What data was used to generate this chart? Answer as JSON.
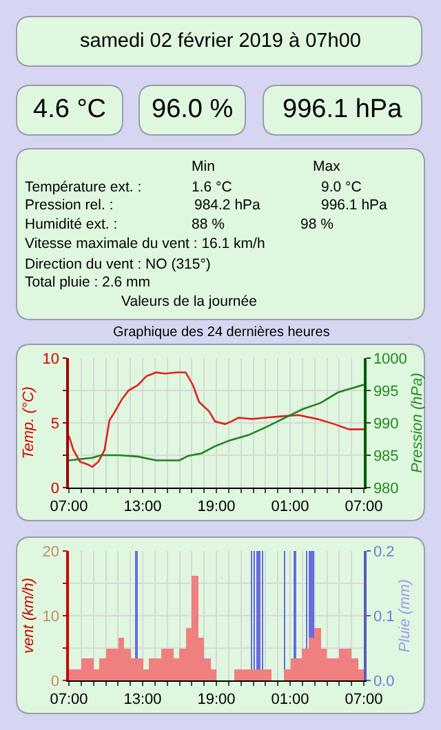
{
  "chart_data": [
    {
      "type": "other",
      "title": "samedi 02 février 2019 à 07h00",
      "annotations": [
        "4.6 °C",
        "96.0 %",
        "996.1 hPa",
        "Min",
        "Max",
        "Température ext. :",
        "1.6 °C",
        "9.0 °C",
        "Pression rel. :",
        "984.2 hPa",
        "996.1 hPa",
        "Humidité ext. :",
        "88 %",
        "98 %",
        "Vitesse maximale du vent : 16.1 km/h",
        "Direction du vent : NO (315°)",
        "Total pluie : 2.6 mm",
        "Valeurs de la journée"
      ]
    },
    {
      "type": "line",
      "title": "Graphique des 24 dernières heures",
      "ylabel": "Temp. (°C)",
      "y2label": "Pression (hPa)",
      "xlim": [
        "2019-02-01T07:00",
        "2019-02-02T07:00"
      ],
      "xticks": [
        {
          "value": "2019-02-01T07:00",
          "label": "07:00"
        },
        {
          "value": "2019-02-01T08:00",
          "label": null
        },
        {
          "value": "2019-02-01T09:00",
          "label": null
        },
        {
          "value": "2019-02-01T10:00",
          "label": null
        },
        {
          "value": "2019-02-01T11:00",
          "label": null
        },
        {
          "value": "2019-02-01T12:00",
          "label": null
        },
        {
          "value": "2019-02-01T13:00",
          "label": "13:00"
        },
        {
          "value": "2019-02-01T14:00",
          "label": null
        },
        {
          "value": "2019-02-01T15:00",
          "label": null
        },
        {
          "value": "2019-02-01T16:00",
          "label": null
        },
        {
          "value": "2019-02-01T17:00",
          "label": null
        },
        {
          "value": "2019-02-01T18:00",
          "label": null
        },
        {
          "value": "2019-02-01T19:00",
          "label": "19:00"
        },
        {
          "value": "2019-02-01T20:00",
          "label": null
        },
        {
          "value": "2019-02-01T21:00",
          "label": null
        },
        {
          "value": "2019-02-01T22:00",
          "label": null
        },
        {
          "value": "2019-02-01T23:00",
          "label": null
        },
        {
          "value": "2019-02-02T00:00",
          "label": null
        },
        {
          "value": "2019-02-02T01:00",
          "label": "01:00"
        },
        {
          "value": "2019-02-02T02:00",
          "label": null
        },
        {
          "value": "2019-02-02T03:00",
          "label": null
        },
        {
          "value": "2019-02-02T04:00",
          "label": null
        },
        {
          "value": "2019-02-02T05:00",
          "label": null
        },
        {
          "value": "2019-02-02T06:00",
          "label": null
        },
        {
          "value": "2019-02-02T07:00",
          "label": "07:00"
        }
      ],
      "ylim": [
        0,
        10
      ],
      "yticks": [
        0,
        {
          "value": 2.5,
          "label": null
        },
        5,
        {
          "value": 7.5,
          "label": null
        },
        10
      ],
      "y2lim": [
        980,
        1000
      ],
      "y2ticks": [
        980,
        985,
        990,
        995,
        1000
      ],
      "grid": true,
      "marker": "none",
      "series": [
        {
          "color": "#e02020",
          "x": [
            "2019-02-01T07:00",
            "2019-02-01T07:22",
            "2019-02-01T07:54",
            "2019-02-01T08:30",
            "2019-02-01T08:54",
            "2019-02-01T09:24",
            "2019-02-01T09:54",
            "2019-02-01T10:18",
            "2019-02-01T10:42",
            "2019-02-01T11:18",
            "2019-02-01T11:51",
            "2019-02-01T12:36",
            "2019-02-01T13:18",
            "2019-02-01T14:06",
            "2019-02-01T14:48",
            "2019-02-01T15:48",
            "2019-02-01T16:30",
            "2019-02-01T17:06",
            "2019-02-01T17:36",
            "2019-02-01T18:24",
            "2019-02-01T18:54",
            "2019-02-01T19:42",
            "2019-02-01T20:12",
            "2019-02-01T20:48",
            "2019-02-01T21:54",
            "2019-02-01T23:00",
            "2019-02-02T00:12",
            "2019-02-02T01:42",
            "2019-02-02T03:12",
            "2019-02-02T04:36",
            "2019-02-02T05:48",
            "2019-02-02T07:00"
          ],
          "values": [
            4.0,
            2.9,
            2.0,
            1.8,
            1.6,
            2.0,
            2.9,
            5.2,
            5.8,
            6.8,
            7.5,
            7.9,
            8.6,
            8.9,
            8.8,
            8.9,
            8.9,
            7.9,
            6.6,
            5.9,
            5.1,
            4.9,
            5.1,
            5.4,
            5.3,
            5.4,
            5.5,
            5.6,
            5.3,
            4.9,
            4.5,
            4.5
          ]
        },
        {
          "color": "#208020",
          "axis": "y2",
          "x": [
            "2019-02-01T07:00",
            "2019-02-01T08:54",
            "2019-02-01T09:36",
            "2019-02-01T11:06",
            "2019-02-01T12:36",
            "2019-02-01T14:06",
            "2019-02-01T16:00",
            "2019-02-01T16:42",
            "2019-02-01T17:48",
            "2019-02-01T18:54",
            "2019-02-01T20:06",
            "2019-02-01T21:36",
            "2019-02-01T23:00",
            "2019-02-02T00:30",
            "2019-02-02T02:00",
            "2019-02-02T03:30",
            "2019-02-02T04:54",
            "2019-02-02T07:00"
          ],
          "values": [
            984.2,
            984.6,
            985.0,
            985.0,
            984.8,
            984.2,
            984.2,
            984.9,
            985.3,
            986.4,
            987.3,
            988.1,
            989.3,
            990.7,
            992.1,
            993.1,
            994.7,
            995.9
          ]
        }
      ]
    },
    {
      "type": "bar",
      "ylabel": "vent (km/h)",
      "y2label": "Pluie (mm)",
      "xlim": [
        "2019-02-01T07:00",
        "2019-02-02T07:00"
      ],
      "xticks": [
        {
          "value": "2019-02-01T07:00",
          "label": "07:00"
        },
        {
          "value": "2019-02-01T08:00",
          "label": null
        },
        {
          "value": "2019-02-01T09:00",
          "label": null
        },
        {
          "value": "2019-02-01T10:00",
          "label": null
        },
        {
          "value": "2019-02-01T11:00",
          "label": null
        },
        {
          "value": "2019-02-01T12:00",
          "label": null
        },
        {
          "value": "2019-02-01T13:00",
          "label": "13:00"
        },
        {
          "value": "2019-02-01T14:00",
          "label": null
        },
        {
          "value": "2019-02-01T15:00",
          "label": null
        },
        {
          "value": "2019-02-01T16:00",
          "label": null
        },
        {
          "value": "2019-02-01T17:00",
          "label": null
        },
        {
          "value": "2019-02-01T18:00",
          "label": null
        },
        {
          "value": "2019-02-01T19:00",
          "label": "19:00"
        },
        {
          "value": "2019-02-01T20:00",
          "label": null
        },
        {
          "value": "2019-02-01T21:00",
          "label": null
        },
        {
          "value": "2019-02-01T22:00",
          "label": null
        },
        {
          "value": "2019-02-01T23:00",
          "label": null
        },
        {
          "value": "2019-02-02T00:00",
          "label": null
        },
        {
          "value": "2019-02-02T01:00",
          "label": "01:00"
        },
        {
          "value": "2019-02-02T02:00",
          "label": null
        },
        {
          "value": "2019-02-02T03:00",
          "label": null
        },
        {
          "value": "2019-02-02T04:00",
          "label": null
        },
        {
          "value": "2019-02-02T05:00",
          "label": null
        },
        {
          "value": "2019-02-02T06:00",
          "label": null
        },
        {
          "value": "2019-02-02T07:00",
          "label": "07:00"
        }
      ],
      "ylim": [
        0,
        20
      ],
      "yticks": [
        0,
        {
          "value": 5,
          "label": null
        },
        10,
        {
          "value": 15,
          "label": null
        },
        20
      ],
      "y2lim": [
        0,
        0.2
      ],
      "y2ticks": [
        {
          "value": 0,
          "label": "0.0"
        },
        0.1,
        0.2
      ],
      "grid": true,
      "series": [
        {
          "color": "#f08080",
          "x": [
            "2019-02-01T07:15",
            "2019-02-01T07:45",
            "2019-02-01T08:15",
            "2019-02-01T08:45",
            "2019-02-01T09:15",
            "2019-02-01T09:45",
            "2019-02-01T10:15",
            "2019-02-01T10:45",
            "2019-02-01T11:15",
            "2019-02-01T11:45",
            "2019-02-01T12:15",
            "2019-02-01T12:45",
            "2019-02-01T13:15",
            "2019-02-01T13:45",
            "2019-02-01T14:15",
            "2019-02-01T14:45",
            "2019-02-01T15:15",
            "2019-02-01T15:45",
            "2019-02-01T16:15",
            "2019-02-01T16:45",
            "2019-02-01T17:15",
            "2019-02-01T17:45",
            "2019-02-01T18:15",
            "2019-02-01T18:45",
            "2019-02-01T19:15",
            "2019-02-01T19:45",
            "2019-02-01T20:15",
            "2019-02-01T20:45",
            "2019-02-01T21:15",
            "2019-02-01T21:45",
            "2019-02-01T22:15",
            "2019-02-01T22:45",
            "2019-02-01T23:15",
            "2019-02-01T23:45",
            "2019-02-02T00:15",
            "2019-02-02T00:45",
            "2019-02-02T01:15",
            "2019-02-02T01:45",
            "2019-02-02T02:15",
            "2019-02-02T02:45",
            "2019-02-02T03:15",
            "2019-02-02T03:45",
            "2019-02-02T04:15",
            "2019-02-02T04:45",
            "2019-02-02T05:15",
            "2019-02-02T05:45",
            "2019-02-02T06:15",
            "2019-02-02T06:45"
          ],
          "values": [
            1.6,
            1.6,
            3.3,
            3.3,
            1.6,
            3.3,
            5.0,
            5.0,
            6.5,
            5.0,
            3.3,
            3.3,
            1.6,
            3.3,
            3.3,
            5.0,
            5.0,
            3.3,
            5.0,
            8.0,
            16.1,
            6.5,
            3.3,
            1.6,
            0,
            0,
            0,
            1.6,
            1.6,
            1.6,
            1.6,
            1.6,
            1.6,
            0,
            0,
            1.6,
            3.3,
            3.3,
            5.0,
            6.5,
            8.0,
            5.0,
            3.3,
            3.3,
            5.0,
            5.0,
            3.3,
            1.6
          ]
        },
        {
          "color": "#4040e0",
          "axis": "y2",
          "x": [
            "2019-02-01T12:30",
            "2019-02-01T21:51",
            "2019-02-01T22:06",
            "2019-02-01T22:18",
            "2019-02-01T22:30",
            "2019-02-01T22:45",
            "2019-02-02T00:33",
            "2019-02-02T01:24",
            "2019-02-02T02:21",
            "2019-02-02T02:36",
            "2019-02-02T02:51"
          ],
          "values": [
            0.2,
            0.2,
            0.2,
            0.2,
            0.2,
            0.2,
            0.2,
            0.2,
            0.2,
            0.2,
            0.2
          ]
        }
      ]
    }
  ]
}
